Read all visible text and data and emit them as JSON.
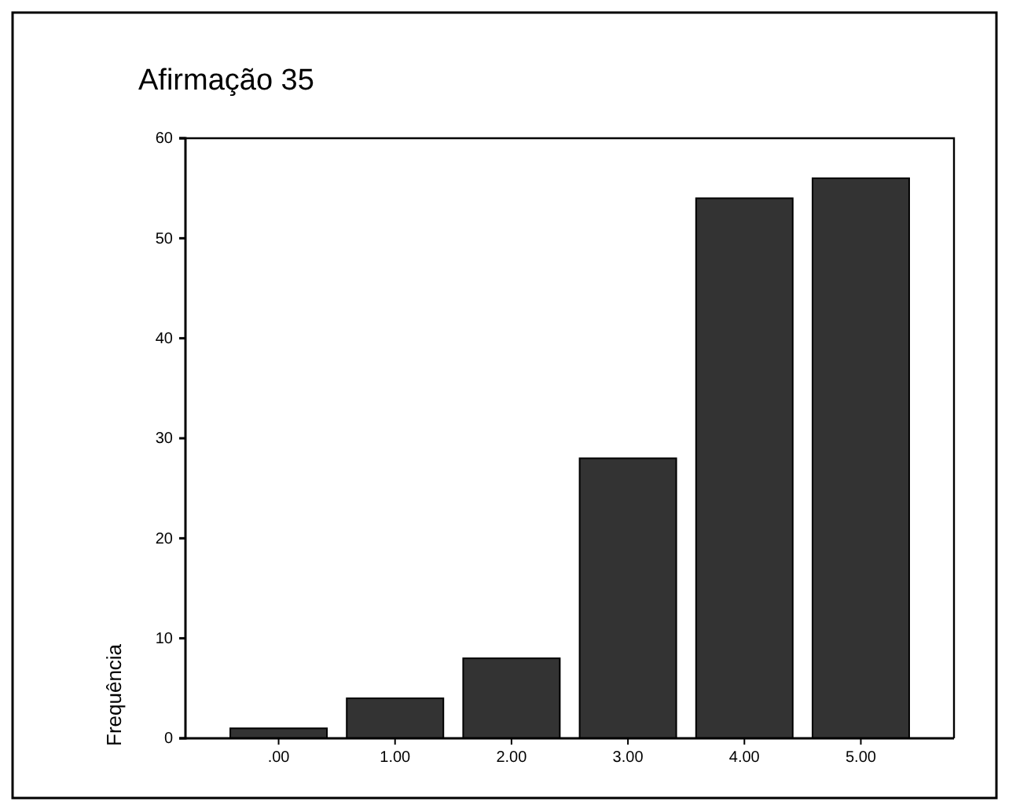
{
  "chart_data": {
    "type": "bar",
    "title": "Afirmação 35",
    "ylabel": "Frequência",
    "categories": [
      ".00",
      "1.00",
      "2.00",
      "3.00",
      "4.00",
      "5.00"
    ],
    "values": [
      1,
      4,
      8,
      28,
      54,
      56
    ],
    "color": "#333333",
    "ylim": [
      0,
      60
    ],
    "yticks": [
      0,
      10,
      20,
      30,
      40,
      50,
      60
    ],
    "grid": false
  }
}
